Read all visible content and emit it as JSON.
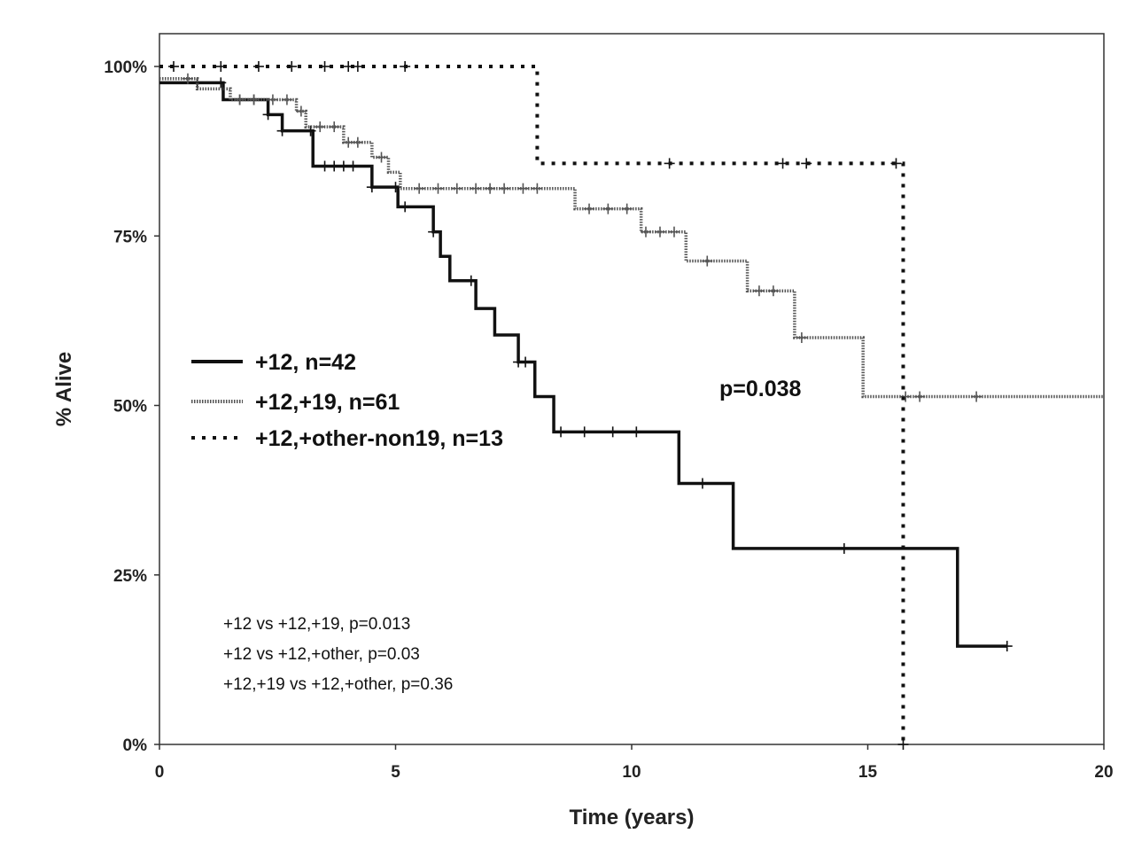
{
  "chart_data": {
    "type": "line",
    "subtype": "kaplan-meier",
    "title": "",
    "xlabel": "Time (years)",
    "ylabel": "% Alive",
    "xlim": [
      0,
      20
    ],
    "ylim": [
      0,
      100
    ],
    "x_ticks": [
      0,
      5,
      10,
      15,
      20
    ],
    "x_tick_labels": [
      "0",
      "5",
      "10",
      "15",
      "20"
    ],
    "y_ticks": [
      0,
      25,
      50,
      75,
      100
    ],
    "y_tick_labels": [
      "0%",
      "25%",
      "50%",
      "75%",
      "100%"
    ],
    "grid": false,
    "legend_position": "middle-left",
    "series": [
      {
        "name": "+12, n=42",
        "style": "solid",
        "color": "#111111",
        "steps": [
          [
            0,
            97.6
          ],
          [
            1.35,
            95.1
          ],
          [
            2.3,
            92.9
          ],
          [
            2.6,
            90.5
          ],
          [
            3.25,
            85.3
          ],
          [
            4.5,
            82.2
          ],
          [
            5.05,
            79.3
          ],
          [
            5.8,
            75.6
          ],
          [
            5.95,
            72.0
          ],
          [
            6.15,
            68.4
          ],
          [
            6.7,
            64.3
          ],
          [
            7.1,
            60.4
          ],
          [
            7.6,
            56.4
          ],
          [
            7.95,
            51.3
          ],
          [
            8.35,
            46.1
          ],
          [
            11.0,
            38.5
          ],
          [
            12.15,
            28.9
          ],
          [
            16.9,
            14.5
          ],
          [
            17.95,
            14.5
          ]
        ],
        "censors": [
          0.8,
          1.3,
          1.7,
          2.0,
          2.3,
          2.6,
          3.2,
          3.5,
          3.7,
          3.9,
          4.1,
          4.5,
          5.0,
          5.2,
          5.8,
          6.6,
          7.6,
          7.75,
          8.5,
          9.0,
          9.6,
          10.1,
          11.5,
          14.5,
          17.95
        ]
      },
      {
        "name": "+12,+19, n=61",
        "style": "dotted",
        "color": "#555555",
        "steps": [
          [
            0,
            98.2
          ],
          [
            0.8,
            96.7
          ],
          [
            1.5,
            95.1
          ],
          [
            2.9,
            93.4
          ],
          [
            3.1,
            91.1
          ],
          [
            3.9,
            88.8
          ],
          [
            4.5,
            86.6
          ],
          [
            4.85,
            84.4
          ],
          [
            5.1,
            82.0
          ],
          [
            8.8,
            79.0
          ],
          [
            10.2,
            75.6
          ],
          [
            11.15,
            71.3
          ],
          [
            12.45,
            66.9
          ],
          [
            13.45,
            60.0
          ],
          [
            14.9,
            51.3
          ],
          [
            20.0,
            51.3
          ]
        ],
        "censors": [
          0.6,
          1.7,
          2.0,
          2.4,
          2.7,
          3.0,
          3.4,
          3.7,
          4.0,
          4.2,
          4.7,
          5.5,
          5.9,
          6.3,
          6.7,
          7.0,
          7.3,
          7.7,
          8.0,
          9.1,
          9.5,
          9.9,
          10.3,
          10.6,
          10.9,
          11.6,
          12.7,
          13.0,
          13.6,
          15.8,
          16.1,
          17.3
        ]
      },
      {
        "name": "+12,+other-non19, n=13",
        "style": "dashed",
        "color": "#111111",
        "steps": [
          [
            0,
            100
          ],
          [
            8.0,
            85.7
          ],
          [
            15.75,
            0
          ]
        ],
        "censors": [
          0.3,
          1.3,
          2.1,
          2.8,
          3.5,
          4.0,
          4.2,
          5.2,
          10.8,
          13.2,
          13.7,
          15.6,
          15.75
        ]
      }
    ],
    "annotations": {
      "overall_p": "p=0.038",
      "comparisons": [
        "+12 vs +12,+19, p=0.013",
        "+12 vs +12,+other, p=0.03",
        "+12,+19 vs +12,+other, p=0.36"
      ]
    }
  }
}
